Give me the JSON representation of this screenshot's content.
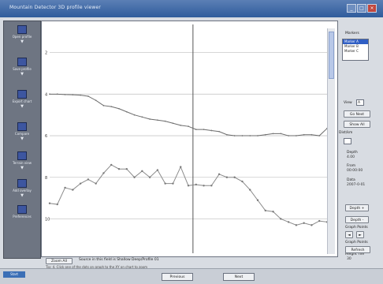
{
  "window": {
    "title": "Mountain Detector 3D profile viewer"
  },
  "sidebar": {
    "items": [
      {
        "icon": "open-file-icon",
        "label": "Open profile"
      },
      {
        "icon": "save-icon",
        "label": "Save profile"
      },
      {
        "icon": "export-icon",
        "label": "Export chart"
      },
      {
        "icon": "compare-icon",
        "label": "Compare"
      },
      {
        "icon": "terrain-icon",
        "label": "Terrain view"
      },
      {
        "icon": "overlay-icon",
        "label": "Add overlay"
      },
      {
        "icon": "settings-icon",
        "label": "Preferences"
      }
    ]
  },
  "chart": {
    "y_tick_labels": [
      "2",
      "4",
      "6",
      "8",
      "10"
    ]
  },
  "chart_data": {
    "type": "line",
    "x": [
      0,
      1,
      2,
      3,
      4,
      5,
      6,
      7,
      8,
      9,
      10,
      11,
      12,
      13,
      14,
      15,
      16,
      17,
      18,
      19,
      20,
      21,
      22,
      23,
      24,
      25,
      26,
      27,
      28,
      29,
      30,
      31,
      32,
      33,
      34,
      35,
      36
    ],
    "series": [
      {
        "values": [
          4.0,
          4.0,
          4.02,
          4.03,
          4.05,
          4.1,
          4.3,
          4.55,
          4.6,
          4.7,
          4.85,
          5.0,
          5.1,
          5.2,
          5.25,
          5.3,
          5.4,
          5.5,
          5.55,
          5.7,
          5.7,
          5.75,
          5.8,
          5.95,
          6.0,
          6.0,
          6.0,
          6.0,
          5.95,
          5.9,
          5.9,
          6.0,
          6.0,
          5.95,
          5.95,
          6.0,
          5.65
        ]
      },
      {
        "values": [
          9.25,
          9.3,
          8.5,
          8.6,
          8.3,
          8.1,
          8.3,
          7.8,
          7.4,
          7.6,
          7.6,
          8.0,
          7.7,
          8.0,
          7.65,
          8.3,
          8.3,
          7.5,
          8.4,
          8.35,
          8.4,
          8.4,
          7.85,
          8.0,
          8.0,
          8.2,
          8.6,
          9.1,
          9.6,
          9.65,
          10.0,
          10.15,
          10.3,
          10.2,
          10.3,
          10.1,
          10.15
        ]
      }
    ],
    "ylim": [
      0.8,
      11.5
    ],
    "y_ticks": [
      2,
      4,
      6,
      8,
      10
    ],
    "grid": true,
    "markers": [
      -1.5,
      18.6
    ]
  },
  "panel": {
    "section_label": "Markers",
    "list_items": [
      "Marker A",
      "Marker B",
      "Marker C"
    ],
    "list_selected": 0,
    "view_label": "View",
    "view_value": "A",
    "buttons": {
      "go": "Go Next",
      "show": "Show All"
    },
    "distance_label": "Dist/km",
    "depth_label": "Depth",
    "depth_value": "4.00",
    "from_label": "From",
    "from_value": "00:00:00",
    "to_label": "Data",
    "to_value": "2007-0-01",
    "btn_depth_up": "Depth +",
    "btn_depth_down": "Depth -",
    "graph_label": "Graph Points",
    "graph_label2": "Graph Points",
    "height_label": "Height Tile",
    "height_value": "30",
    "refresh": "Refresh"
  },
  "bottombar": {
    "zoom_button": "Zoom All",
    "status_line1": "Source in this field is Shallow Deep/Profile 01",
    "status_line2": "Tip: 4. Click one of the dots on graph to the XY on chart to zoom",
    "prev_button": "Previous",
    "next_button": "Next"
  },
  "taskbar": {
    "start_label": "Start"
  }
}
